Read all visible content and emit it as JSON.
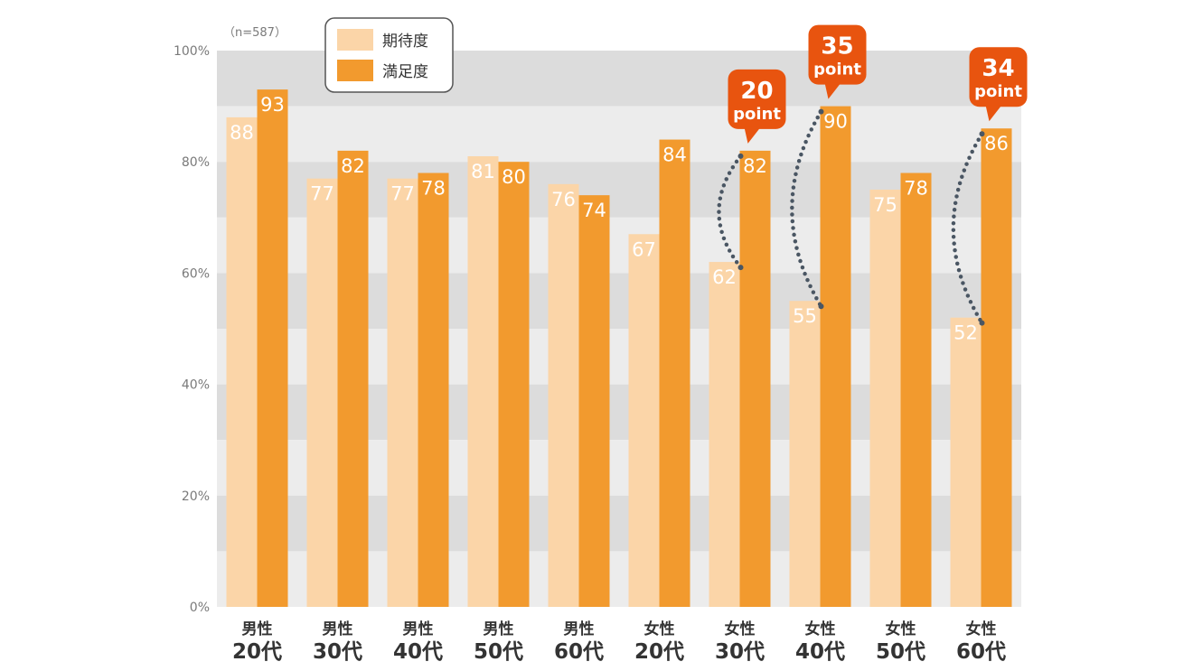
{
  "note": "（n=587）",
  "legend": {
    "items": [
      {
        "label": "期待度",
        "color": "#fbd5a8"
      },
      {
        "label": "満足度",
        "color": "#f29a2e"
      }
    ]
  },
  "callouts": [
    {
      "category_index": 6,
      "number": "20",
      "unit": "point"
    },
    {
      "category_index": 7,
      "number": "35",
      "unit": "point"
    },
    {
      "category_index": 9,
      "number": "34",
      "unit": "point"
    }
  ],
  "colors": {
    "expectation": "#fbd5a8",
    "satisfaction": "#f29a2e",
    "callout": "#e8540f",
    "band_dark": "#dcdcdc",
    "band_light": "#ececec",
    "dots": "#4a5663"
  },
  "chart_data": {
    "type": "bar",
    "categories": [
      {
        "line1": "男性",
        "line2": "20代"
      },
      {
        "line1": "男性",
        "line2": "30代"
      },
      {
        "line1": "男性",
        "line2": "40代"
      },
      {
        "line1": "男性",
        "line2": "50代"
      },
      {
        "line1": "男性",
        "line2": "60代"
      },
      {
        "line1": "女性",
        "line2": "20代"
      },
      {
        "line1": "女性",
        "line2": "30代"
      },
      {
        "line1": "女性",
        "line2": "40代"
      },
      {
        "line1": "女性",
        "line2": "50代"
      },
      {
        "line1": "女性",
        "line2": "60代"
      }
    ],
    "series": [
      {
        "name": "期待度",
        "values": [
          88,
          77,
          77,
          81,
          76,
          67,
          62,
          55,
          75,
          52
        ]
      },
      {
        "name": "満足度",
        "values": [
          93,
          82,
          78,
          80,
          74,
          84,
          82,
          90,
          78,
          86
        ]
      }
    ],
    "yticks": [
      "0%",
      "20%",
      "40%",
      "60%",
      "80%",
      "100%"
    ],
    "ylim": [
      0,
      100
    ],
    "legend_position": "top-left",
    "grid": "alternating bands"
  }
}
